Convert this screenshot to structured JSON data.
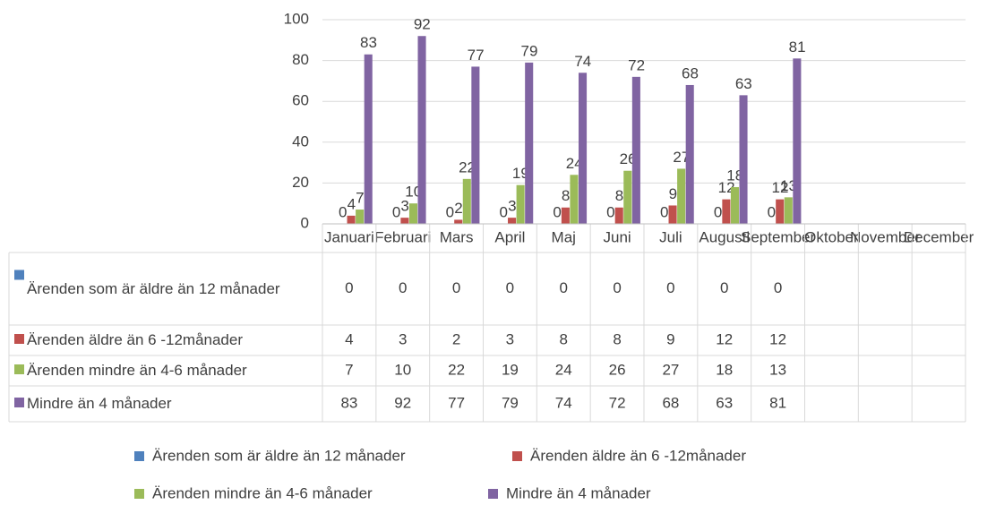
{
  "chart_data": {
    "type": "bar",
    "categories": [
      "Januari",
      "Februari",
      "Mars",
      "April",
      "Maj",
      "Juni",
      "Juli",
      "Augusti",
      "September",
      "Oktober",
      "November",
      "December"
    ],
    "series": [
      {
        "name": "Ärenden som är äldre än 12 månader",
        "color": "#4f81bd",
        "values": [
          0,
          0,
          0,
          0,
          0,
          0,
          0,
          0,
          0,
          null,
          null,
          null
        ]
      },
      {
        "name": "Ärenden äldre än 6 -12månader",
        "color": "#c0504d",
        "values": [
          4,
          3,
          2,
          3,
          8,
          8,
          9,
          12,
          12,
          null,
          null,
          null
        ]
      },
      {
        "name": "Ärenden mindre än 4-6 månader",
        "color": "#9bbb59",
        "values": [
          7,
          10,
          22,
          19,
          24,
          26,
          27,
          18,
          13,
          null,
          null,
          null
        ]
      },
      {
        "name": "Mindre än 4 månader",
        "color": "#8064a2",
        "values": [
          83,
          92,
          77,
          79,
          74,
          72,
          68,
          63,
          81,
          null,
          null,
          null
        ]
      }
    ],
    "ylim": [
      0,
      100
    ],
    "yticks": [
      0,
      20,
      40,
      60,
      80,
      100
    ],
    "grid": true,
    "data_table": true,
    "legend": "bottom"
  }
}
